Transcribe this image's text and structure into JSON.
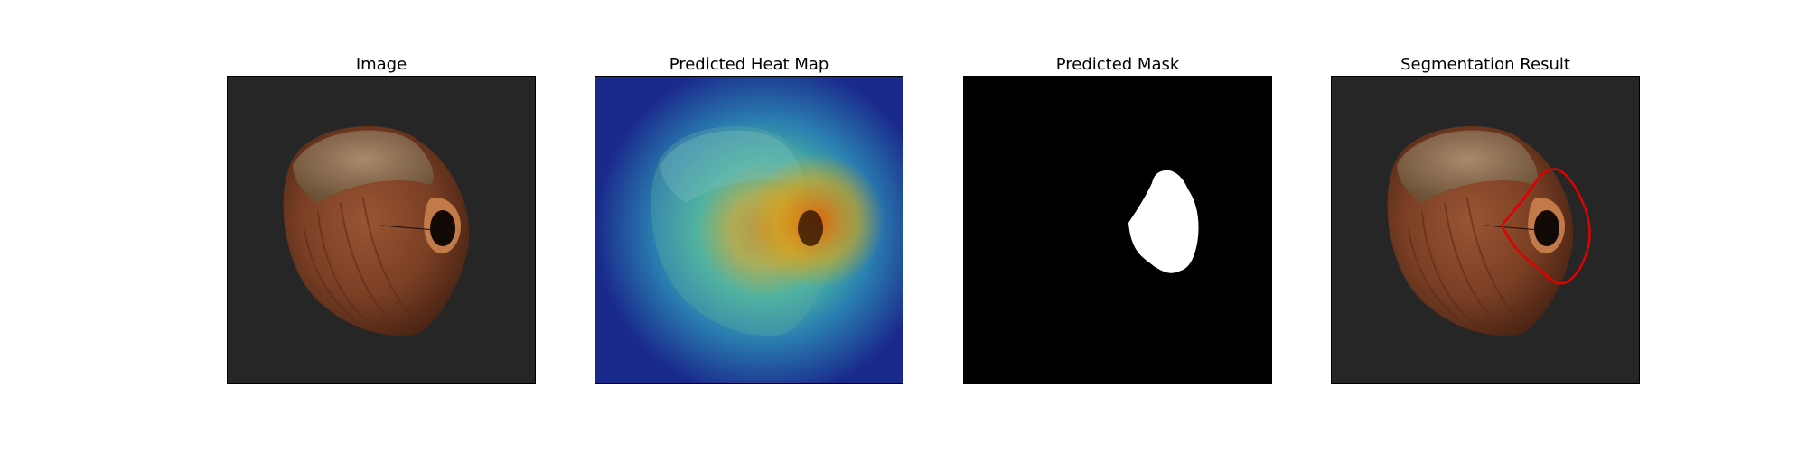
{
  "panels": [
    {
      "title": "Image"
    },
    {
      "title": "Predicted Heat Map"
    },
    {
      "title": "Predicted Mask"
    },
    {
      "title": "Segmentation Result"
    }
  ],
  "colors": {
    "background_dark": "#262626",
    "hazelnut_shell": "#7a3f24",
    "hazelnut_cap": "#9a7a5e",
    "heatmap_low": "#1a2a8c",
    "heatmap_mid": "#2fb5a6",
    "heatmap_high": "#e0a010",
    "mask_background": "#000000",
    "mask_region": "#ffffff",
    "segmentation_contour": "#e00000"
  }
}
